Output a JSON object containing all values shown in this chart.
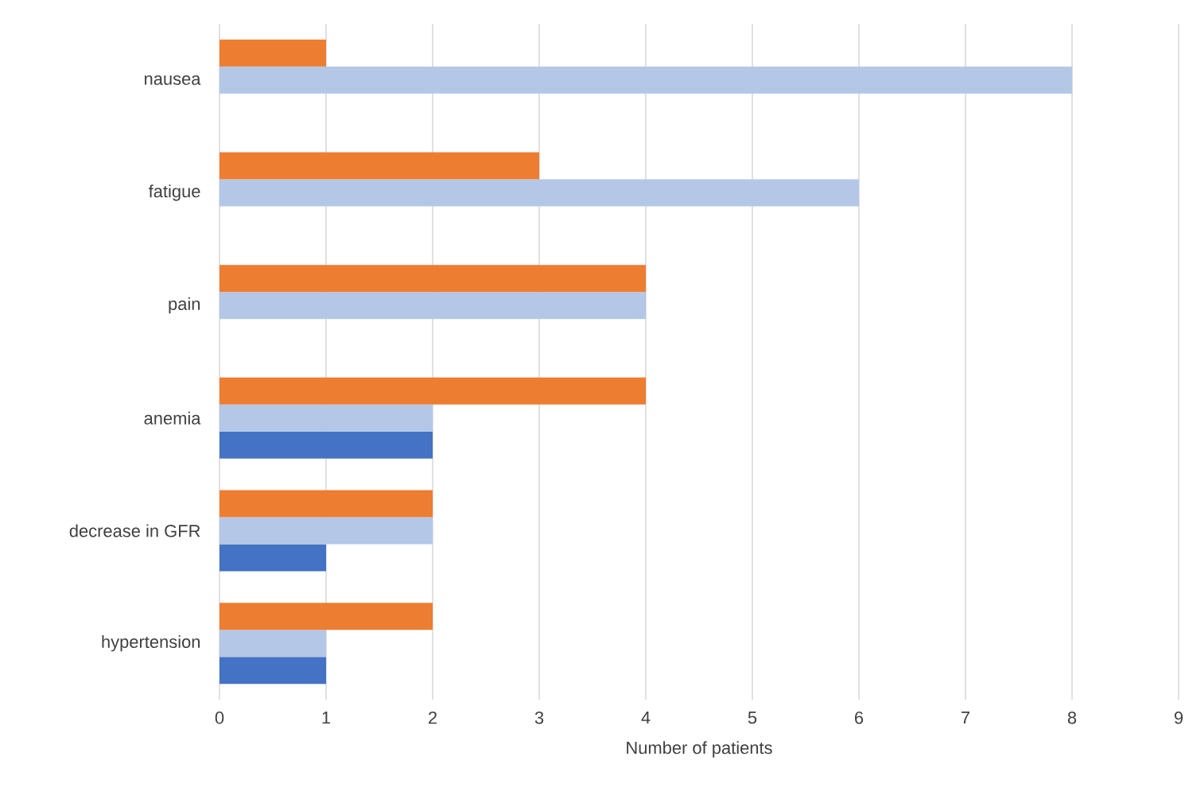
{
  "chart_data": {
    "type": "bar",
    "orientation": "horizontal",
    "xlabel": "Number of patients",
    "categories": [
      "nausea",
      "fatigue",
      "pain",
      "anemia",
      "decrease in GFR",
      "hypertension"
    ],
    "series": [
      {
        "color": "#4472c4",
        "values": [
          0,
          0,
          0,
          2,
          1,
          1
        ]
      },
      {
        "color": "#b4c7e7",
        "values": [
          8,
          6,
          4,
          2,
          2,
          1
        ]
      },
      {
        "color": "#ed7d31",
        "values": [
          1,
          3,
          4,
          4,
          2,
          2
        ]
      }
    ],
    "xlim": [
      0,
      9
    ],
    "xticks": [
      0,
      1,
      2,
      3,
      4,
      5,
      6,
      7,
      8,
      9
    ],
    "grid": "x"
  }
}
